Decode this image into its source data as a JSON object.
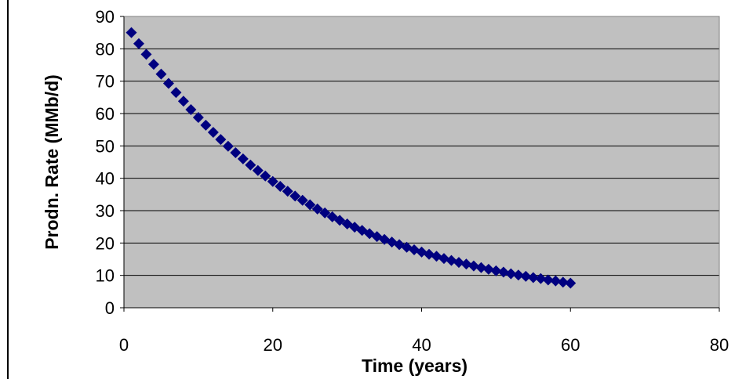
{
  "chart_data": {
    "type": "scatter",
    "title": "",
    "xlabel": "Time  (years)",
    "ylabel": "Prodn. Rate  (MMb/d)",
    "xlim": [
      0,
      80
    ],
    "ylim": [
      0,
      90
    ],
    "x_ticks": [
      "0",
      "20",
      "40",
      "60",
      "80"
    ],
    "y_ticks": [
      "0",
      "10",
      "20",
      "30",
      "40",
      "50",
      "60",
      "70",
      "80",
      "90"
    ],
    "grid": "horizontal",
    "legend": "none",
    "colors": {
      "plot_bg": "#c0c0c0",
      "marker": "#000080",
      "gridline": "#000000"
    },
    "marker": "diamond",
    "series": [
      {
        "x": [
          1,
          2,
          3,
          4,
          5,
          6,
          7,
          8,
          9,
          10,
          11,
          12,
          13,
          14,
          15,
          16,
          17,
          18,
          19,
          20,
          21,
          22,
          23,
          24,
          25,
          26,
          27,
          28,
          29,
          30,
          31,
          32,
          33,
          34,
          35,
          36,
          37,
          38,
          39,
          40,
          41,
          42,
          43,
          44,
          45,
          46,
          47,
          48,
          49,
          50,
          51,
          52,
          53,
          54,
          55,
          56,
          57,
          58,
          59,
          60
        ],
        "y": [
          85.0,
          81.6,
          78.3,
          75.2,
          72.2,
          69.3,
          66.5,
          63.8,
          61.2,
          58.8,
          56.4,
          54.2,
          52.0,
          49.9,
          47.9,
          46.0,
          44.1,
          42.4,
          40.7,
          39.0,
          37.5,
          36.0,
          34.5,
          33.2,
          31.8,
          30.5,
          29.3,
          28.1,
          27.0,
          25.9,
          24.9,
          23.9,
          22.9,
          22.0,
          21.1,
          20.3,
          19.5,
          18.7,
          17.9,
          17.2,
          16.5,
          15.9,
          15.2,
          14.6,
          14.0,
          13.5,
          12.9,
          12.4,
          11.9,
          11.4,
          11.0,
          10.5,
          10.1,
          9.7,
          9.3,
          9.0,
          8.6,
          8.3,
          7.9,
          7.6
        ]
      }
    ]
  }
}
